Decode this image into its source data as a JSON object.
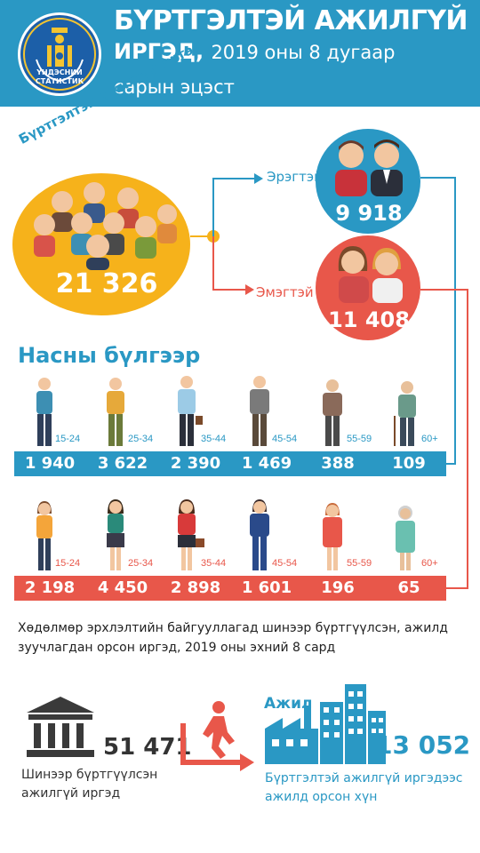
{
  "header": {
    "background_color": "#2a98c4",
    "emblem": {
      "name": "mongolian-emblem-icon",
      "text_line1": "ҮНДЭСНИЙ",
      "text_line2": "СТАТИСТИК"
    },
    "title_line1": "БҮРТГЭЛТЭЙ АЖИЛГҮЙ",
    "title_line2_bold": "ИРГЭД,",
    "title_line2_rest": "2019 оны 8 дугаар",
    "title_line3": "сарын эцэст"
  },
  "total": {
    "label": "Бүртгэлтэй ажилгүй иргэд",
    "value": "21 326",
    "color": "#f6b21b"
  },
  "male": {
    "label": "Эрэгтэй",
    "value": "9 918",
    "color": "#2a98c4"
  },
  "female": {
    "label": "Эмэгтэй",
    "value": "11 408",
    "color": "#e8574a"
  },
  "age_heading": "Насны бүлгээр",
  "age_groups": {
    "male": [
      {
        "age": "15-24",
        "value": "1 940"
      },
      {
        "age": "25-34",
        "value": "3 622"
      },
      {
        "age": "35-44",
        "value": "2 390"
      },
      {
        "age": "45-54",
        "value": "1 469"
      },
      {
        "age": "55-59",
        "value": "388"
      },
      {
        "age": "60+",
        "value": "109"
      }
    ],
    "female": [
      {
        "age": "15-24",
        "value": "2 198"
      },
      {
        "age": "25-34",
        "value": "4 450"
      },
      {
        "age": "35-44",
        "value": "2 898"
      },
      {
        "age": "45-54",
        "value": "1 601"
      },
      {
        "age": "55-59",
        "value": "196"
      },
      {
        "age": "60+",
        "value": "65"
      }
    ]
  },
  "info_text": "Хөдөлмөр эрхлэлтийн байгууллагад шинээр бүртгүүлсэн, ажилд зуучлагдан орсон иргэд, 2019 оны эхний 8 сард",
  "new_registered": {
    "value": "51 471",
    "label": "Шинээр бүртгүүлсэн ажилгүй иргэд",
    "icon": "government-building-icon"
  },
  "employed": {
    "word": "Ажил",
    "value": "13 052",
    "label": "Бүртгэлтэй ажилгүй иргэдээс ажилд орсон хүн",
    "icon": "factory-city-icon"
  },
  "arrow_icon": "walking-person-arrow-icon"
}
